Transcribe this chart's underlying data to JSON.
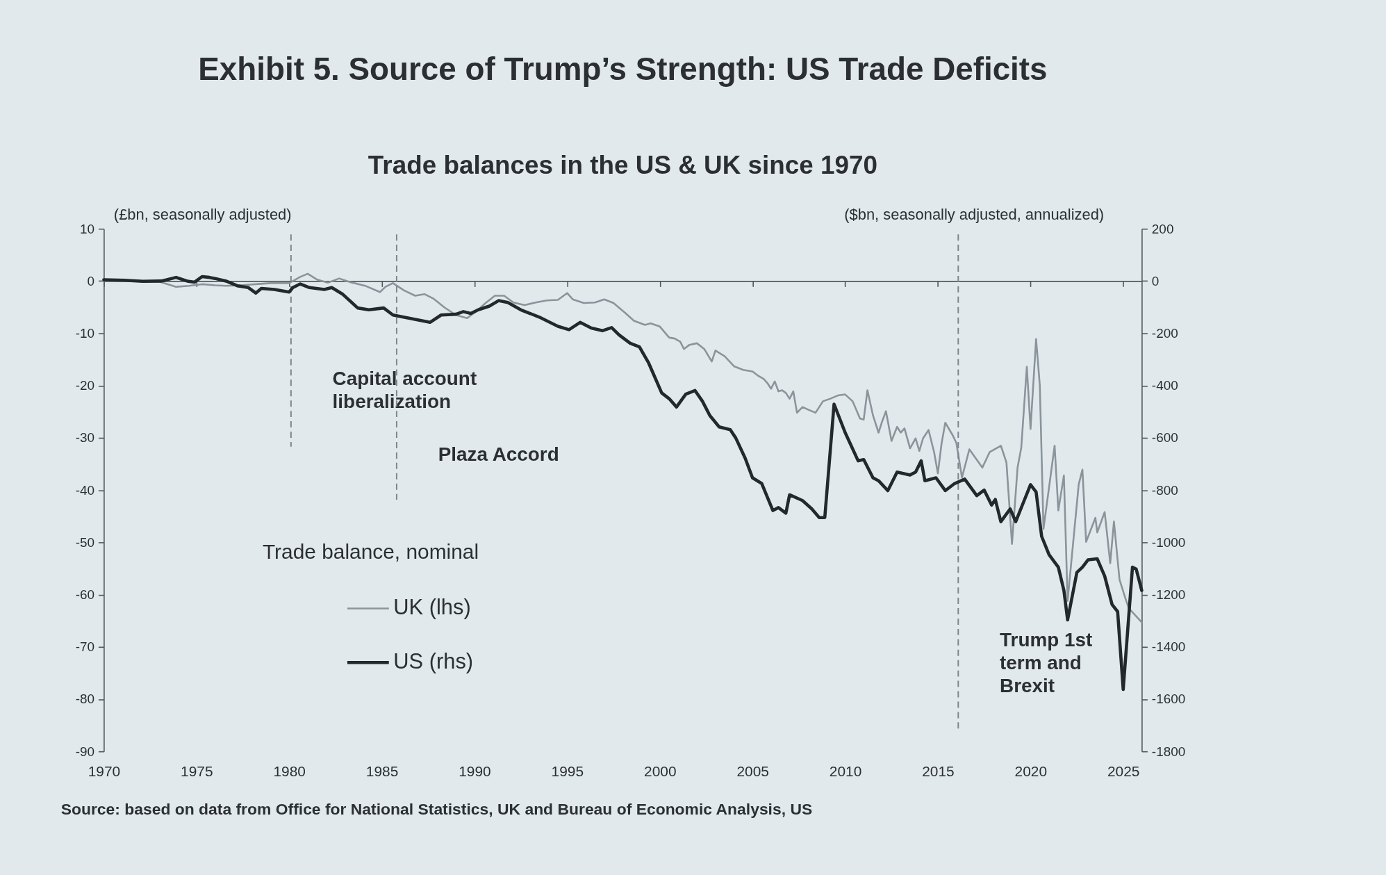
{
  "chart_data": {
    "type": "line",
    "title": "Exhibit 5. Source of Trump’s Strength: US Trade Deficits",
    "subtitle": "Trade balances in the US & UK since 1970",
    "ylabel": "(£bn, seasonally adjusted)",
    "y2label": "($bn, seasonally adjusted, annualized)",
    "legend_title": "Trade balance, nominal",
    "legend": "bottom left",
    "annotations": [
      "Source: based on data from Office for National Statistics, UK and Bureau of Economic Analysis, US"
    ],
    "xlim": [
      1970,
      2026
    ],
    "xticks": [
      1970,
      1975,
      1980,
      1985,
      1990,
      1995,
      2000,
      2005,
      2010,
      2015,
      2020,
      2025
    ],
    "ylim": [
      -90,
      10
    ],
    "yticks": [
      -90,
      -80,
      -70,
      -60,
      -50,
      -40,
      -30,
      -20,
      -10,
      0,
      10
    ],
    "y2lim": [
      -1800,
      200
    ],
    "y2ticks": [
      -1800,
      -1600,
      -1400,
      -1200,
      -1000,
      -800,
      -600,
      -400,
      -200,
      0,
      200
    ],
    "ref_lines": [
      {
        "axis": "x",
        "value": 1980.1,
        "label": "Capital account\nliberalization",
        "color": "#7d868c",
        "line_style": "dashed"
      },
      {
        "axis": "x",
        "value": 1985.8,
        "label": "Plaza Accord",
        "color": "#7d868c",
        "line_style": "dashed"
      },
      {
        "axis": "x",
        "value": 2016.1,
        "label": "Trump 1st\nterm and\nBrexit",
        "color": "#7d868c",
        "line_style": "dashed"
      }
    ],
    "series": [
      {
        "name": "UK (lhs)",
        "color": "#8a949b",
        "x": [
          1970.0,
          1972.0,
          1973.0,
          1973.9,
          1974.6,
          1975.3,
          1976.0,
          1976.6,
          1977.4,
          1978.2,
          1979.0,
          1980.0,
          1980.6,
          1981.0,
          1981.5,
          1982.1,
          1982.7,
          1983.3,
          1984.1,
          1984.9,
          1985.2,
          1985.6,
          1986.2,
          1986.8,
          1987.3,
          1987.8,
          1988.4,
          1989.0,
          1989.6,
          1990.1,
          1990.6,
          1991.1,
          1991.6,
          1992.1,
          1992.7,
          1993.3,
          1993.9,
          1994.5,
          1995.0,
          1995.3,
          1995.9,
          1996.5,
          1997.0,
          1997.5,
          1998.1,
          1998.6,
          1999.2,
          1999.5,
          2000.0,
          2000.5,
          2000.8,
          2001.1,
          2001.3,
          2001.6,
          2002.0,
          2002.4,
          2002.8,
          2003.0,
          2003.5,
          2004.0,
          2004.5,
          2005.0,
          2005.3,
          2005.6,
          2005.8,
          2006.0,
          2006.2,
          2006.4,
          2006.6,
          2006.8,
          2007.0,
          2007.2,
          2007.4,
          2007.7,
          2008.0,
          2008.4,
          2008.8,
          2009.2,
          2009.6,
          2010.0,
          2010.4,
          2010.8,
          2011.0,
          2011.2,
          2011.5,
          2011.8,
          2012.0,
          2012.2,
          2012.5,
          2012.8,
          2013.0,
          2013.2,
          2013.5,
          2013.8,
          2014.0,
          2014.2,
          2014.5,
          2014.8,
          2015.0,
          2015.2,
          2015.4,
          2015.8,
          2016.0,
          2016.3,
          2016.7,
          2017.4,
          2017.8,
          2018.4,
          2018.7,
          2019.0,
          2019.3,
          2019.5,
          2019.8,
          2020.0,
          2020.3,
          2020.5,
          2020.7,
          2021.3,
          2021.5,
          2021.8,
          2022.0,
          2022.6,
          2022.8,
          2023.0,
          2023.5,
          2023.6,
          2024.0,
          2024.3,
          2024.5,
          2024.8,
          2025.1,
          2025.3,
          2026.0
        ],
        "values": [
          0.1,
          0.0,
          -0.1,
          -1.1,
          -0.9,
          -0.6,
          -0.8,
          -0.9,
          -0.8,
          -0.6,
          -0.4,
          -0.4,
          0.8,
          1.4,
          0.3,
          -0.3,
          0.5,
          -0.2,
          -0.9,
          -2.1,
          -1.1,
          -0.4,
          -1.8,
          -2.8,
          -2.5,
          -3.4,
          -5.1,
          -6.5,
          -7.1,
          -5.8,
          -4.2,
          -2.8,
          -2.8,
          -4.1,
          -4.6,
          -4.1,
          -3.7,
          -3.6,
          -2.3,
          -3.5,
          -4.2,
          -4.1,
          -3.5,
          -4.2,
          -6.0,
          -7.6,
          -8.4,
          -8.1,
          -8.7,
          -10.8,
          -11.0,
          -11.6,
          -13.0,
          -12.2,
          -11.9,
          -13.0,
          -15.4,
          -13.3,
          -14.4,
          -16.3,
          -17.0,
          -17.3,
          -18.1,
          -18.7,
          -19.5,
          -20.6,
          -19.2,
          -21.1,
          -20.9,
          -21.4,
          -22.5,
          -21.1,
          -25.2,
          -24.1,
          -24.6,
          -25.2,
          -23.0,
          -22.5,
          -21.9,
          -21.7,
          -23.0,
          -26.3,
          -26.5,
          -20.9,
          -25.7,
          -29.0,
          -26.8,
          -24.9,
          -30.6,
          -27.9,
          -29.0,
          -28.2,
          -32.0,
          -30.1,
          -32.5,
          -30.1,
          -28.5,
          -32.8,
          -36.8,
          -31.1,
          -27.1,
          -29.5,
          -31.0,
          -37.6,
          -32.2,
          -35.7,
          -32.7,
          -31.5,
          -34.7,
          -50.3,
          -35.7,
          -31.9,
          -16.4,
          -28.3,
          -11.1,
          -19.9,
          -47.4,
          -31.5,
          -43.9,
          -37.2,
          -61.2,
          -38.9,
          -36.1,
          -49.9,
          -45.3,
          -48.1,
          -44.2,
          -54.0,
          -46.0,
          -57.1,
          -60.5,
          -62.6,
          -65.3
        ]
      },
      {
        "name": "US (rhs)",
        "color": "#23282c",
        "axis": "y2",
        "x": [
          1970.0,
          1971.1,
          1972.1,
          1973.1,
          1973.9,
          1974.5,
          1974.9,
          1975.3,
          1975.7,
          1976.0,
          1976.6,
          1977.2,
          1977.8,
          1978.2,
          1978.5,
          1979.2,
          1980.0,
          1980.2,
          1980.6,
          1981.1,
          1981.9,
          1982.3,
          1982.9,
          1983.7,
          1984.3,
          1985.1,
          1985.6,
          1986.6,
          1987.6,
          1988.2,
          1989.0,
          1989.4,
          1989.8,
          1990.2,
          1990.8,
          1991.3,
          1991.8,
          1992.5,
          1993.5,
          1994.5,
          1995.1,
          1995.7,
          1996.3,
          1996.9,
          1997.4,
          1997.8,
          1998.4,
          1998.9,
          1999.4,
          2000.1,
          2000.5,
          2000.9,
          2001.4,
          2001.9,
          2002.3,
          2002.7,
          2003.2,
          2003.8,
          2004.1,
          2004.6,
          2005.0,
          2005.5,
          2006.1,
          2006.4,
          2006.8,
          2007.0,
          2007.7,
          2008.2,
          2008.6,
          2008.9,
          2009.4,
          2010.0,
          2010.7,
          2011.0,
          2011.5,
          2011.8,
          2012.3,
          2012.8,
          2013.5,
          2013.8,
          2014.1,
          2014.3,
          2014.9,
          2015.4,
          2015.9,
          2016.45,
          2017.1,
          2017.5,
          2017.9,
          2018.1,
          2018.4,
          2018.9,
          2019.2,
          2019.6,
          2020.0,
          2020.3,
          2020.6,
          2021.0,
          2021.5,
          2021.8,
          2022.0,
          2022.5,
          2022.8,
          2023.1,
          2023.6,
          2024.0,
          2024.4,
          2024.7,
          2025.0,
          2025.5,
          2025.7,
          2026.0
        ],
        "values": [
          5,
          3,
          -1,
          0,
          14,
          0,
          -4,
          17,
          14,
          10,
          0,
          -18,
          -25,
          -46,
          -28,
          -32,
          -42,
          -25,
          -11,
          -25,
          -32,
          -25,
          -51,
          -103,
          -110,
          -103,
          -130,
          -144,
          -158,
          -130,
          -127,
          -117,
          -124,
          -110,
          -96,
          -75,
          -82,
          -110,
          -138,
          -173,
          -186,
          -158,
          -180,
          -190,
          -178,
          -206,
          -238,
          -252,
          -314,
          -428,
          -450,
          -482,
          -433,
          -419,
          -460,
          -515,
          -558,
          -569,
          -601,
          -677,
          -753,
          -775,
          -878,
          -867,
          -888,
          -818,
          -840,
          -872,
          -905,
          -905,
          -471,
          -580,
          -688,
          -683,
          -753,
          -764,
          -802,
          -731,
          -742,
          -731,
          -688,
          -764,
          -753,
          -802,
          -775,
          -758,
          -821,
          -800,
          -857,
          -836,
          -921,
          -872,
          -921,
          -850,
          -779,
          -807,
          -977,
          -1047,
          -1095,
          -1184,
          -1297,
          -1115,
          -1095,
          -1067,
          -1063,
          -1129,
          -1238,
          -1265,
          -1563,
          -1095,
          -1102,
          -1184
        ]
      }
    ]
  }
}
